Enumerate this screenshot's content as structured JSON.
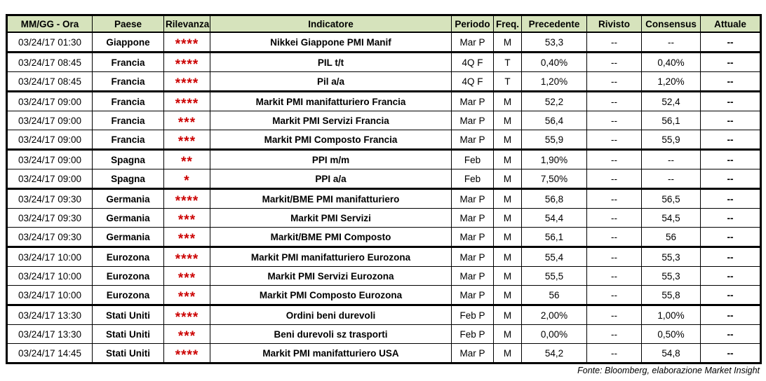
{
  "colors": {
    "header_bg": "#d6e3bc",
    "relevance_star_red": "#cc0000",
    "border_black": "#000000"
  },
  "table": {
    "columns": [
      "MM/GG - Ora",
      "Paese",
      "Rilevanza",
      "Indicatore",
      "Periodo",
      "Freq.",
      "Precedente",
      "Rivisto",
      "Consensus",
      "Attuale"
    ],
    "rows": [
      {
        "datetime": "03/24/17 01:30",
        "country": "Giappone",
        "relevance": "****",
        "indicator": "Nikkei Giappone PMI Manif",
        "period": "Mar P",
        "freq": "M",
        "previous": "53,3",
        "revised": "--",
        "consensus": "--",
        "actual": "--",
        "group_end": true
      },
      {
        "datetime": "03/24/17 08:45",
        "country": "Francia",
        "relevance": "****",
        "indicator": "PIL t/t",
        "period": "4Q F",
        "freq": "T",
        "previous": "0,40%",
        "revised": "--",
        "consensus": "0,40%",
        "actual": "--",
        "group_end": false
      },
      {
        "datetime": "03/24/17 08:45",
        "country": "Francia",
        "relevance": "****",
        "indicator": "Pil a/a",
        "period": "4Q F",
        "freq": "T",
        "previous": "1,20%",
        "revised": "--",
        "consensus": "1,20%",
        "actual": "--",
        "group_end": true
      },
      {
        "datetime": "03/24/17 09:00",
        "country": "Francia",
        "relevance": "****",
        "indicator": "Markit PMI manifatturiero Francia",
        "period": "Mar P",
        "freq": "M",
        "previous": "52,2",
        "revised": "--",
        "consensus": "52,4",
        "actual": "--",
        "group_end": false
      },
      {
        "datetime": "03/24/17 09:00",
        "country": "Francia",
        "relevance": "***",
        "indicator": "Markit PMI Servizi Francia",
        "period": "Mar P",
        "freq": "M",
        "previous": "56,4",
        "revised": "--",
        "consensus": "56,1",
        "actual": "--",
        "group_end": false
      },
      {
        "datetime": "03/24/17 09:00",
        "country": "Francia",
        "relevance": "***",
        "indicator": "Markit PMI Composto Francia",
        "period": "Mar P",
        "freq": "M",
        "previous": "55,9",
        "revised": "--",
        "consensus": "55,9",
        "actual": "--",
        "group_end": true
      },
      {
        "datetime": "03/24/17 09:00",
        "country": "Spagna",
        "relevance": "**",
        "indicator": "PPI m/m",
        "period": "Feb",
        "freq": "M",
        "previous": "1,90%",
        "revised": "--",
        "consensus": "--",
        "actual": "--",
        "group_end": false
      },
      {
        "datetime": "03/24/17 09:00",
        "country": "Spagna",
        "relevance": "*",
        "indicator": "PPI a/a",
        "period": "Feb",
        "freq": "M",
        "previous": "7,50%",
        "revised": "--",
        "consensus": "--",
        "actual": "--",
        "group_end": true
      },
      {
        "datetime": "03/24/17 09:30",
        "country": "Germania",
        "relevance": "****",
        "indicator": "Markit/BME PMI manifatturiero",
        "period": "Mar P",
        "freq": "M",
        "previous": "56,8",
        "revised": "--",
        "consensus": "56,5",
        "actual": "--",
        "group_end": false
      },
      {
        "datetime": "03/24/17 09:30",
        "country": "Germania",
        "relevance": "***",
        "indicator": "Markit PMI Servizi",
        "period": "Mar P",
        "freq": "M",
        "previous": "54,4",
        "revised": "--",
        "consensus": "54,5",
        "actual": "--",
        "group_end": false
      },
      {
        "datetime": "03/24/17 09:30",
        "country": "Germania",
        "relevance": "***",
        "indicator": "Markit/BME PMI Composto",
        "period": "Mar P",
        "freq": "M",
        "previous": "56,1",
        "revised": "--",
        "consensus": "56",
        "actual": "--",
        "group_end": true
      },
      {
        "datetime": "03/24/17 10:00",
        "country": "Eurozona",
        "relevance": "****",
        "indicator": "Markit PMI manifatturiero Eurozona",
        "period": "Mar P",
        "freq": "M",
        "previous": "55,4",
        "revised": "--",
        "consensus": "55,3",
        "actual": "--",
        "group_end": false
      },
      {
        "datetime": "03/24/17 10:00",
        "country": "Eurozona",
        "relevance": "***",
        "indicator": "Markit PMI Servizi Eurozona",
        "period": "Mar P",
        "freq": "M",
        "previous": "55,5",
        "revised": "--",
        "consensus": "55,3",
        "actual": "--",
        "group_end": false
      },
      {
        "datetime": "03/24/17 10:00",
        "country": "Eurozona",
        "relevance": "***",
        "indicator": "Markit PMI Composto Eurozona",
        "period": "Mar P",
        "freq": "M",
        "previous": "56",
        "revised": "--",
        "consensus": "55,8",
        "actual": "--",
        "group_end": true
      },
      {
        "datetime": "03/24/17 13:30",
        "country": "Stati Uniti",
        "relevance": "****",
        "indicator": "Ordini beni durevoli",
        "period": "Feb P",
        "freq": "M",
        "previous": "2,00%",
        "revised": "--",
        "consensus": "1,00%",
        "actual": "--",
        "group_end": false
      },
      {
        "datetime": "03/24/17 13:30",
        "country": "Stati Uniti",
        "relevance": "***",
        "indicator": "Beni durevoli sz trasporti",
        "period": "Feb P",
        "freq": "M",
        "previous": "0,00%",
        "revised": "--",
        "consensus": "0,50%",
        "actual": "--",
        "group_end": false
      },
      {
        "datetime": "03/24/17 14:45",
        "country": "Stati Uniti",
        "relevance": "****",
        "indicator": "Markit PMI manifatturiero USA",
        "period": "Mar P",
        "freq": "M",
        "previous": "54,2",
        "revised": "--",
        "consensus": "54,8",
        "actual": "--",
        "group_end": false
      }
    ]
  },
  "footer": {
    "source_note": "Fonte: Bloomberg, elaborazione Market Insight"
  }
}
